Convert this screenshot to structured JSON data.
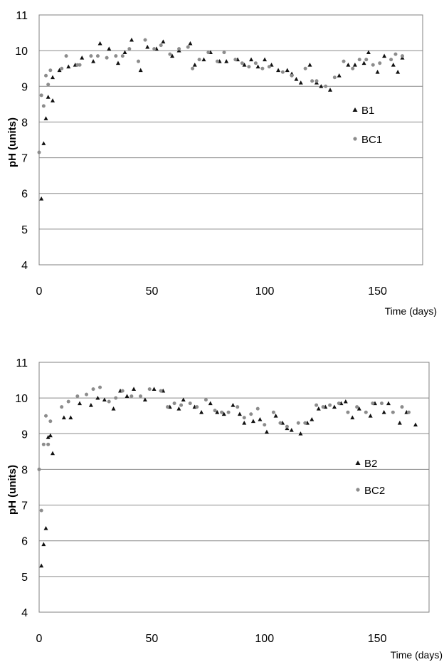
{
  "chart_data": [
    {
      "type": "scatter",
      "xlabel": "Time (days)",
      "ylabel": "pH (units)",
      "xlim": [
        0,
        170
      ],
      "ylim": [
        4,
        11
      ],
      "xticks": [
        0,
        50,
        100,
        150
      ],
      "yticks": [
        4,
        5,
        6,
        7,
        8,
        9,
        10,
        11
      ],
      "grid": "horizontal",
      "legend": "right",
      "series": [
        {
          "name": "B1",
          "marker": "triangle",
          "color": "#111111",
          "points": [
            [
              1,
              5.85
            ],
            [
              2,
              7.4
            ],
            [
              3,
              8.1
            ],
            [
              4,
              8.7
            ],
            [
              6,
              8.6
            ],
            [
              6,
              9.25
            ],
            [
              9,
              9.45
            ],
            [
              13,
              9.55
            ],
            [
              16,
              9.6
            ],
            [
              19,
              9.8
            ],
            [
              24,
              9.7
            ],
            [
              27,
              10.2
            ],
            [
              31,
              10.05
            ],
            [
              35,
              9.65
            ],
            [
              38,
              9.95
            ],
            [
              41,
              10.3
            ],
            [
              45,
              9.45
            ],
            [
              48,
              10.1
            ],
            [
              52,
              10.05
            ],
            [
              55,
              10.25
            ],
            [
              59,
              9.85
            ],
            [
              62,
              10.0
            ],
            [
              67,
              10.2
            ],
            [
              69,
              9.6
            ],
            [
              73,
              9.75
            ],
            [
              76,
              9.95
            ],
            [
              80,
              9.7
            ],
            [
              83,
              9.7
            ],
            [
              88,
              9.75
            ],
            [
              91,
              9.6
            ],
            [
              94,
              9.75
            ],
            [
              97,
              9.55
            ],
            [
              100,
              9.75
            ],
            [
              103,
              9.6
            ],
            [
              106,
              9.45
            ],
            [
              110,
              9.45
            ],
            [
              112,
              9.35
            ],
            [
              114,
              9.2
            ],
            [
              116,
              9.1
            ],
            [
              120,
              9.6
            ],
            [
              123,
              9.1
            ],
            [
              125,
              9.0
            ],
            [
              129,
              8.9
            ],
            [
              133,
              9.3
            ],
            [
              137,
              9.6
            ],
            [
              140,
              9.6
            ],
            [
              144,
              9.65
            ],
            [
              146,
              9.95
            ],
            [
              150,
              9.4
            ],
            [
              153,
              9.85
            ],
            [
              157,
              9.6
            ],
            [
              159,
              9.4
            ],
            [
              161,
              9.8
            ]
          ]
        },
        {
          "name": "BC1",
          "marker": "circle",
          "color": "#8c8c8c",
          "points": [
            [
              0,
              7.15
            ],
            [
              1,
              8.75
            ],
            [
              2,
              8.45
            ],
            [
              3,
              9.3
            ],
            [
              4,
              9.05
            ],
            [
              5,
              9.45
            ],
            [
              10,
              9.5
            ],
            [
              12,
              9.85
            ],
            [
              17,
              9.6
            ],
            [
              18,
              9.6
            ],
            [
              23,
              9.85
            ],
            [
              26,
              9.85
            ],
            [
              30,
              9.8
            ],
            [
              34,
              9.85
            ],
            [
              37,
              9.85
            ],
            [
              40,
              10.05
            ],
            [
              44,
              9.7
            ],
            [
              47,
              10.3
            ],
            [
              51,
              10.05
            ],
            [
              54,
              10.15
            ],
            [
              58,
              9.9
            ],
            [
              62,
              10.05
            ],
            [
              66,
              10.1
            ],
            [
              68,
              9.5
            ],
            [
              71,
              9.75
            ],
            [
              75,
              9.95
            ],
            [
              79,
              9.7
            ],
            [
              82,
              9.95
            ],
            [
              87,
              9.75
            ],
            [
              90,
              9.65
            ],
            [
              93,
              9.55
            ],
            [
              96,
              9.65
            ],
            [
              99,
              9.5
            ],
            [
              102,
              9.55
            ],
            [
              108,
              9.4
            ],
            [
              112,
              9.3
            ],
            [
              118,
              9.5
            ],
            [
              121,
              9.15
            ],
            [
              123,
              9.15
            ],
            [
              127,
              9.0
            ],
            [
              131,
              9.25
            ],
            [
              135,
              9.7
            ],
            [
              139,
              9.5
            ],
            [
              142,
              9.75
            ],
            [
              145,
              9.75
            ],
            [
              148,
              9.6
            ],
            [
              151,
              9.65
            ],
            [
              156,
              9.75
            ],
            [
              158,
              9.9
            ],
            [
              161,
              9.85
            ]
          ]
        }
      ]
    },
    {
      "type": "scatter",
      "xlabel": "Time (days)",
      "ylabel": "pH (units)",
      "xlim": [
        0,
        173
      ],
      "ylim": [
        4,
        11
      ],
      "xticks": [
        0,
        50,
        100,
        150
      ],
      "yticks": [
        4,
        5,
        6,
        7,
        8,
        9,
        10,
        11
      ],
      "grid": "horizontal",
      "legend": "right",
      "series": [
        {
          "name": "B2",
          "marker": "triangle",
          "color": "#111111",
          "points": [
            [
              1,
              5.3
            ],
            [
              2,
              5.9
            ],
            [
              3,
              6.35
            ],
            [
              4,
              8.9
            ],
            [
              5,
              8.95
            ],
            [
              6,
              8.45
            ],
            [
              11,
              9.45
            ],
            [
              14,
              9.45
            ],
            [
              18,
              9.85
            ],
            [
              23,
              9.8
            ],
            [
              26,
              10.0
            ],
            [
              29,
              9.95
            ],
            [
              33,
              9.7
            ],
            [
              36,
              10.2
            ],
            [
              39,
              10.05
            ],
            [
              42,
              10.25
            ],
            [
              47,
              9.95
            ],
            [
              51,
              10.25
            ],
            [
              55,
              10.2
            ],
            [
              58,
              9.75
            ],
            [
              62,
              9.7
            ],
            [
              64,
              9.95
            ],
            [
              69,
              9.75
            ],
            [
              72,
              9.6
            ],
            [
              76,
              9.85
            ],
            [
              79,
              9.6
            ],
            [
              82,
              9.55
            ],
            [
              86,
              9.8
            ],
            [
              89,
              9.55
            ],
            [
              91,
              9.3
            ],
            [
              95,
              9.35
            ],
            [
              98,
              9.4
            ],
            [
              101,
              9.05
            ],
            [
              105,
              9.5
            ],
            [
              108,
              9.3
            ],
            [
              110,
              9.15
            ],
            [
              112,
              9.1
            ],
            [
              116,
              9.0
            ],
            [
              119,
              9.3
            ],
            [
              121,
              9.4
            ],
            [
              124,
              9.7
            ],
            [
              127,
              9.75
            ],
            [
              131,
              9.75
            ],
            [
              134,
              9.85
            ],
            [
              136,
              9.9
            ],
            [
              139,
              9.45
            ],
            [
              142,
              9.7
            ],
            [
              147,
              9.5
            ],
            [
              149,
              9.85
            ],
            [
              153,
              9.6
            ],
            [
              155,
              9.85
            ],
            [
              160,
              9.3
            ],
            [
              163,
              9.6
            ],
            [
              167,
              9.25
            ]
          ]
        },
        {
          "name": "BC2",
          "marker": "circle",
          "color": "#8c8c8c",
          "points": [
            [
              0,
              8.0
            ],
            [
              1,
              6.85
            ],
            [
              2,
              8.7
            ],
            [
              3,
              9.5
            ],
            [
              4,
              8.7
            ],
            [
              5,
              9.35
            ],
            [
              10,
              9.75
            ],
            [
              13,
              9.9
            ],
            [
              17,
              10.05
            ],
            [
              21,
              10.1
            ],
            [
              24,
              10.25
            ],
            [
              27,
              10.3
            ],
            [
              31,
              9.9
            ],
            [
              34,
              10.0
            ],
            [
              37,
              10.2
            ],
            [
              41,
              10.05
            ],
            [
              45,
              10.05
            ],
            [
              49,
              10.25
            ],
            [
              54,
              10.2
            ],
            [
              57,
              9.75
            ],
            [
              60,
              9.85
            ],
            [
              63,
              9.8
            ],
            [
              67,
              9.85
            ],
            [
              70,
              9.75
            ],
            [
              74,
              9.95
            ],
            [
              78,
              9.65
            ],
            [
              81,
              9.6
            ],
            [
              84,
              9.6
            ],
            [
              88,
              9.75
            ],
            [
              91,
              9.45
            ],
            [
              94,
              9.55
            ],
            [
              97,
              9.7
            ],
            [
              100,
              9.25
            ],
            [
              104,
              9.6
            ],
            [
              107,
              9.3
            ],
            [
              110,
              9.2
            ],
            [
              115,
              9.3
            ],
            [
              118,
              9.3
            ],
            [
              123,
              9.8
            ],
            [
              126,
              9.75
            ],
            [
              129,
              9.8
            ],
            [
              133,
              9.85
            ],
            [
              137,
              9.6
            ],
            [
              141,
              9.75
            ],
            [
              145,
              9.6
            ],
            [
              148,
              9.85
            ],
            [
              152,
              9.85
            ],
            [
              157,
              9.6
            ],
            [
              161,
              9.75
            ],
            [
              164,
              9.6
            ]
          ]
        }
      ]
    }
  ]
}
